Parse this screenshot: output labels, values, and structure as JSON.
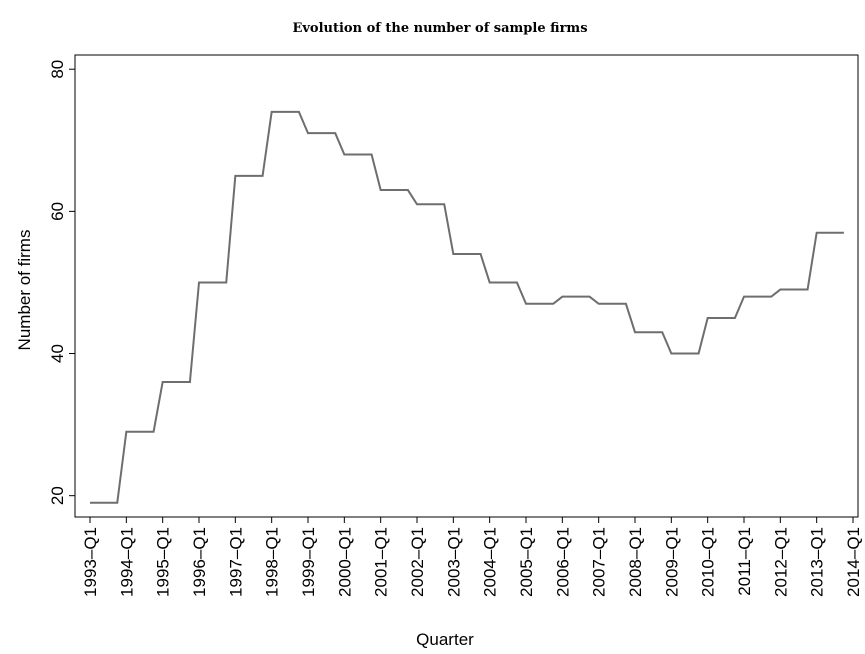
{
  "chart_data": {
    "type": "line",
    "title": "Evolution of the number of sample firms",
    "x_label": "Quarter",
    "y_label": "Number of firms",
    "categories": [
      "1993–Q1",
      null,
      null,
      null,
      "1994–Q1",
      null,
      null,
      null,
      "1995–Q1",
      null,
      null,
      null,
      "1996–Q1",
      null,
      null,
      null,
      "1997–Q1",
      null,
      null,
      null,
      "1998–Q1",
      null,
      null,
      null,
      "1999–Q1",
      null,
      null,
      null,
      "2000–Q1",
      null,
      null,
      null,
      "2001–Q1",
      null,
      null,
      null,
      "2002–Q1",
      null,
      null,
      null,
      "2003–Q1",
      null,
      null,
      null,
      "2004–Q1",
      null,
      null,
      null,
      "2005–Q1",
      null,
      null,
      null,
      "2006–Q1",
      null,
      null,
      null,
      "2007–Q1",
      null,
      null,
      null,
      "2008–Q1",
      null,
      null,
      null,
      "2009–Q1",
      null,
      null,
      null,
      "2010–Q1",
      null,
      null,
      null,
      "2011–Q1",
      null,
      null,
      null,
      "2012–Q1",
      null,
      null,
      null,
      "2013–Q1",
      null,
      null,
      null,
      "2014–Q1"
    ],
    "values": [
      19,
      19,
      19,
      19,
      29,
      29,
      29,
      29,
      36,
      36,
      36,
      36,
      50,
      50,
      50,
      50,
      65,
      65,
      65,
      65,
      74,
      74,
      74,
      74,
      71,
      71,
      71,
      71,
      68,
      68,
      68,
      68,
      63,
      63,
      63,
      63,
      61,
      61,
      61,
      61,
      54,
      54,
      54,
      54,
      50,
      50,
      50,
      50,
      47,
      47,
      47,
      47,
      48,
      48,
      48,
      48,
      47,
      47,
      47,
      47,
      43,
      43,
      43,
      43,
      40,
      40,
      40,
      40,
      45,
      45,
      45,
      45,
      48,
      48,
      48,
      48,
      49,
      49,
      49,
      49,
      57,
      57,
      57,
      57,
      null
    ],
    "color": "#6e6e6e",
    "ylim": [
      17,
      82
    ],
    "yticks": [
      20,
      40,
      60,
      80
    ]
  }
}
